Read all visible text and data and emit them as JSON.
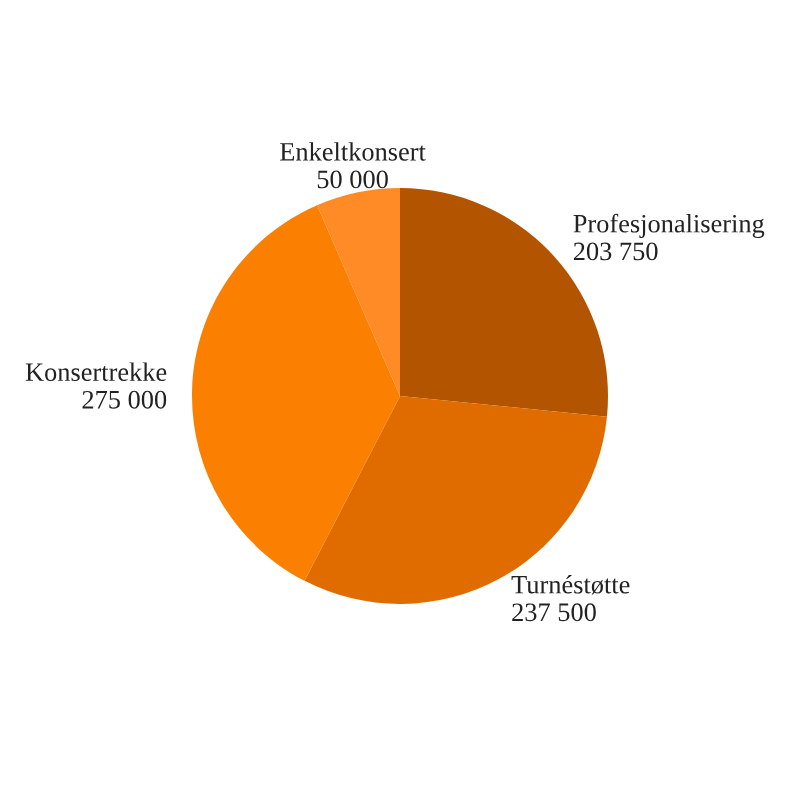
{
  "chart_data": {
    "type": "pie",
    "categories": [
      "Profesjonalisering",
      "Turnéstøtte",
      "Konsertrekke",
      "Enkeltkonsert"
    ],
    "values": [
      203750,
      237500,
      275000,
      50000
    ],
    "value_labels": [
      "203 750",
      "237 500",
      "275 000",
      "50 000"
    ],
    "colors": [
      "#b35400",
      "#e06c00",
      "#fb7f00",
      "#ff8b26"
    ],
    "legend": false
  }
}
